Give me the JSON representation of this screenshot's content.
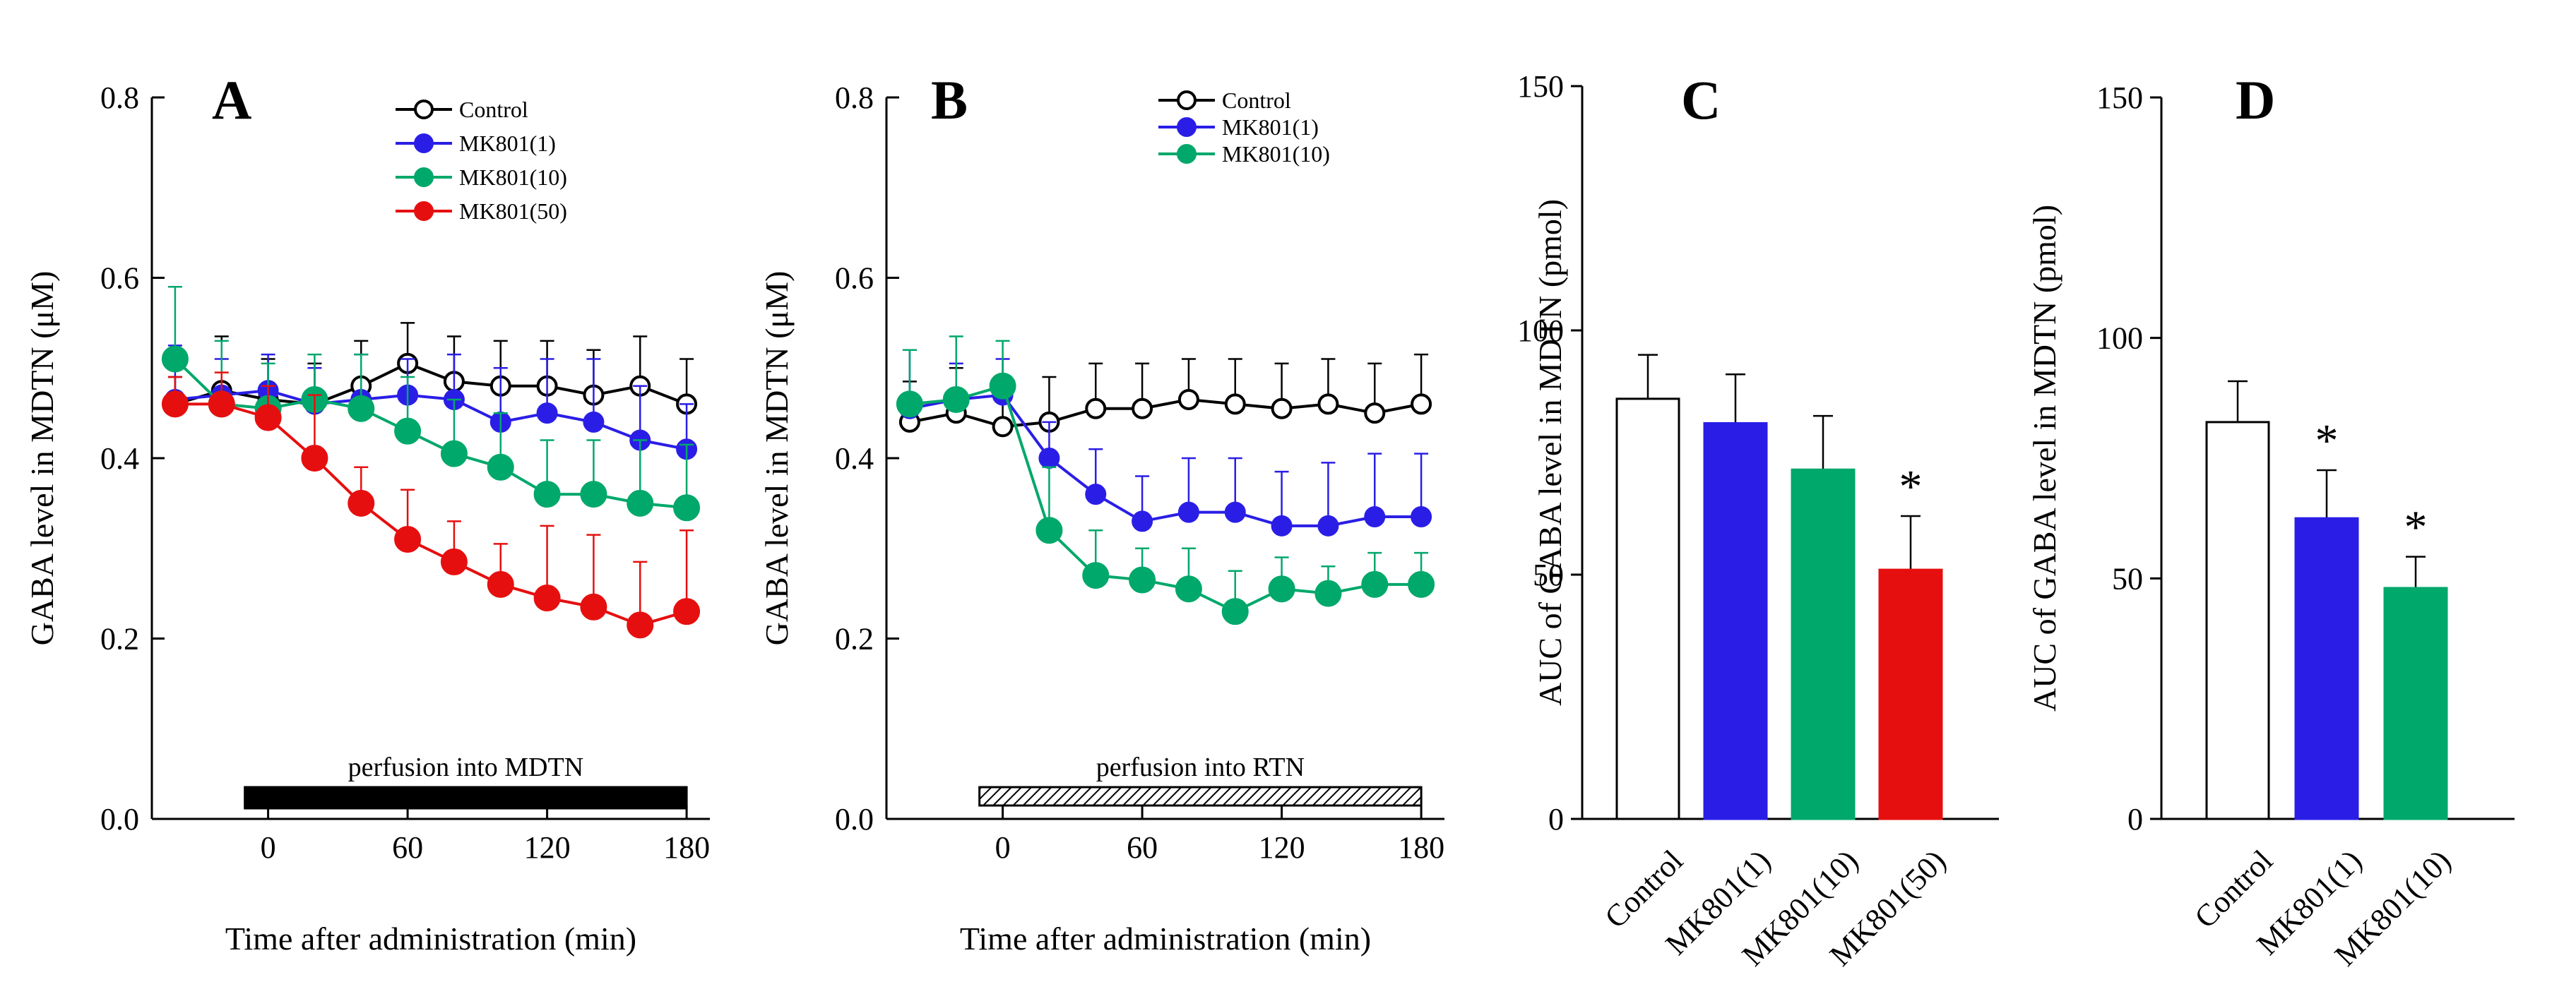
{
  "chart_data": [
    {
      "id": "A",
      "type": "line",
      "panel_label": "A",
      "xlabel": "Time after administration (min)",
      "ylabel": "GABA level in MDTN (μM)",
      "xlim": [
        -50,
        190
      ],
      "ylim": [
        0,
        0.8
      ],
      "xticks": [
        0,
        60,
        120,
        180
      ],
      "yticks": [
        0.0,
        0.2,
        0.4,
        0.6,
        0.8
      ],
      "ytick_labels": [
        "0.0",
        "0.2",
        "0.4",
        "0.6",
        "0.8"
      ],
      "x": [
        -40,
        -20,
        0,
        20,
        40,
        60,
        80,
        100,
        120,
        140,
        160,
        180
      ],
      "legend_position": "top-right",
      "perfusion_bar": {
        "label": "perfusion into MDTN",
        "start": -10,
        "end": 180,
        "style": "solid"
      },
      "series": [
        {
          "name": "Control",
          "color": "#000000",
          "filled": false,
          "size": "small",
          "values": [
            0.46,
            0.475,
            0.465,
            0.46,
            0.48,
            0.505,
            0.485,
            0.48,
            0.48,
            0.47,
            0.48,
            0.46
          ],
          "errors": [
            0.03,
            0.06,
            0.045,
            0.045,
            0.05,
            0.045,
            0.05,
            0.05,
            0.05,
            0.05,
            0.055,
            0.05
          ]
        },
        {
          "name": "MK801(1)",
          "color": "#2a1ee6",
          "filled": true,
          "size": "small",
          "values": [
            0.465,
            0.47,
            0.475,
            0.46,
            0.465,
            0.47,
            0.465,
            0.44,
            0.45,
            0.44,
            0.42,
            0.41
          ],
          "errors": [
            0.06,
            0.04,
            0.04,
            0.04,
            0.05,
            0.04,
            0.05,
            0.06,
            0.06,
            0.07,
            0.06,
            0.05
          ]
        },
        {
          "name": "MK801(10)",
          "color": "#00a86b",
          "filled": true,
          "size": "large",
          "values": [
            0.51,
            0.46,
            0.455,
            0.465,
            0.455,
            0.43,
            0.405,
            0.39,
            0.36,
            0.36,
            0.35,
            0.345
          ],
          "errors": [
            0.08,
            0.07,
            0.05,
            0.05,
            0.06,
            0.06,
            0.06,
            0.06,
            0.06,
            0.06,
            0.07,
            0.07
          ]
        },
        {
          "name": "MK801(50)",
          "color": "#e60f0f",
          "filled": true,
          "size": "large",
          "values": [
            0.46,
            0.46,
            0.445,
            0.4,
            0.35,
            0.31,
            0.285,
            0.26,
            0.245,
            0.235,
            0.215,
            0.23
          ],
          "errors": [
            0.03,
            0.035,
            0.035,
            0.07,
            0.04,
            0.055,
            0.045,
            0.045,
            0.08,
            0.08,
            0.07,
            0.09
          ]
        }
      ]
    },
    {
      "id": "B",
      "type": "line",
      "panel_label": "B",
      "xlabel": "Time after administration (min)",
      "ylabel": "GABA level in MDTN (μM)",
      "xlim": [
        -50,
        190
      ],
      "ylim": [
        0,
        0.8
      ],
      "xticks": [
        0,
        60,
        120,
        180
      ],
      "yticks": [
        0.0,
        0.2,
        0.4,
        0.6,
        0.8
      ],
      "ytick_labels": [
        "0.0",
        "0.2",
        "0.4",
        "0.6",
        "0.8"
      ],
      "x": [
        -40,
        -20,
        0,
        20,
        40,
        60,
        80,
        100,
        120,
        140,
        160,
        180
      ],
      "legend_position": "top-right",
      "perfusion_bar": {
        "label": "perfusion into RTN",
        "start": -10,
        "end": 180,
        "style": "hatched"
      },
      "series": [
        {
          "name": "Control",
          "color": "#000000",
          "filled": false,
          "size": "small",
          "values": [
            0.44,
            0.45,
            0.435,
            0.44,
            0.455,
            0.455,
            0.465,
            0.46,
            0.455,
            0.46,
            0.45,
            0.46
          ],
          "errors": [
            0.045,
            0.05,
            0.04,
            0.05,
            0.05,
            0.05,
            0.045,
            0.05,
            0.05,
            0.05,
            0.055,
            0.055
          ]
        },
        {
          "name": "MK801(1)",
          "color": "#2a1ee6",
          "filled": true,
          "size": "small",
          "values": [
            0.455,
            0.465,
            0.47,
            0.4,
            0.36,
            0.33,
            0.34,
            0.34,
            0.325,
            0.325,
            0.335,
            0.335
          ],
          "errors": [
            0.065,
            0.04,
            0.04,
            0.04,
            0.05,
            0.05,
            0.06,
            0.06,
            0.06,
            0.07,
            0.07,
            0.07
          ]
        },
        {
          "name": "MK801(10)",
          "color": "#00a86b",
          "filled": true,
          "size": "large",
          "values": [
            0.46,
            0.465,
            0.48,
            0.32,
            0.27,
            0.265,
            0.255,
            0.23,
            0.255,
            0.25,
            0.26,
            0.26
          ],
          "errors": [
            0.06,
            0.07,
            0.05,
            0.07,
            0.05,
            0.035,
            0.045,
            0.045,
            0.035,
            0.03,
            0.035,
            0.035
          ]
        }
      ]
    },
    {
      "id": "C",
      "type": "bar",
      "panel_label": "C",
      "ylabel": "AUC of GABA level in MDTN (pmol)",
      "ylim": [
        0,
        150
      ],
      "yticks": [
        0,
        50,
        100,
        150
      ],
      "categories": [
        "Control",
        "MK801(1)",
        "MK801(10)",
        "MK801(50)"
      ],
      "values": [
        86,
        81,
        71.5,
        51
      ],
      "errors": [
        9,
        10,
        11,
        11
      ],
      "colors": [
        "#ffffff",
        "#2a1ee6",
        "#00a86b",
        "#e60f0f"
      ],
      "significant": [
        false,
        false,
        false,
        true
      ],
      "significance_marker": "*"
    },
    {
      "id": "D",
      "type": "bar",
      "panel_label": "D",
      "ylabel": "AUC of GABA level in MDTN (pmol)",
      "ylim": [
        0,
        150
      ],
      "yticks": [
        0,
        50,
        100,
        150
      ],
      "categories": [
        "Control",
        "MK801(1)",
        "MK801(10)"
      ],
      "values": [
        82.5,
        62.5,
        48
      ],
      "errors": [
        8.5,
        10,
        6.5
      ],
      "colors": [
        "#ffffff",
        "#2a1ee6",
        "#00a86b"
      ],
      "significant": [
        false,
        true,
        true
      ],
      "significance_marker": "*"
    }
  ]
}
